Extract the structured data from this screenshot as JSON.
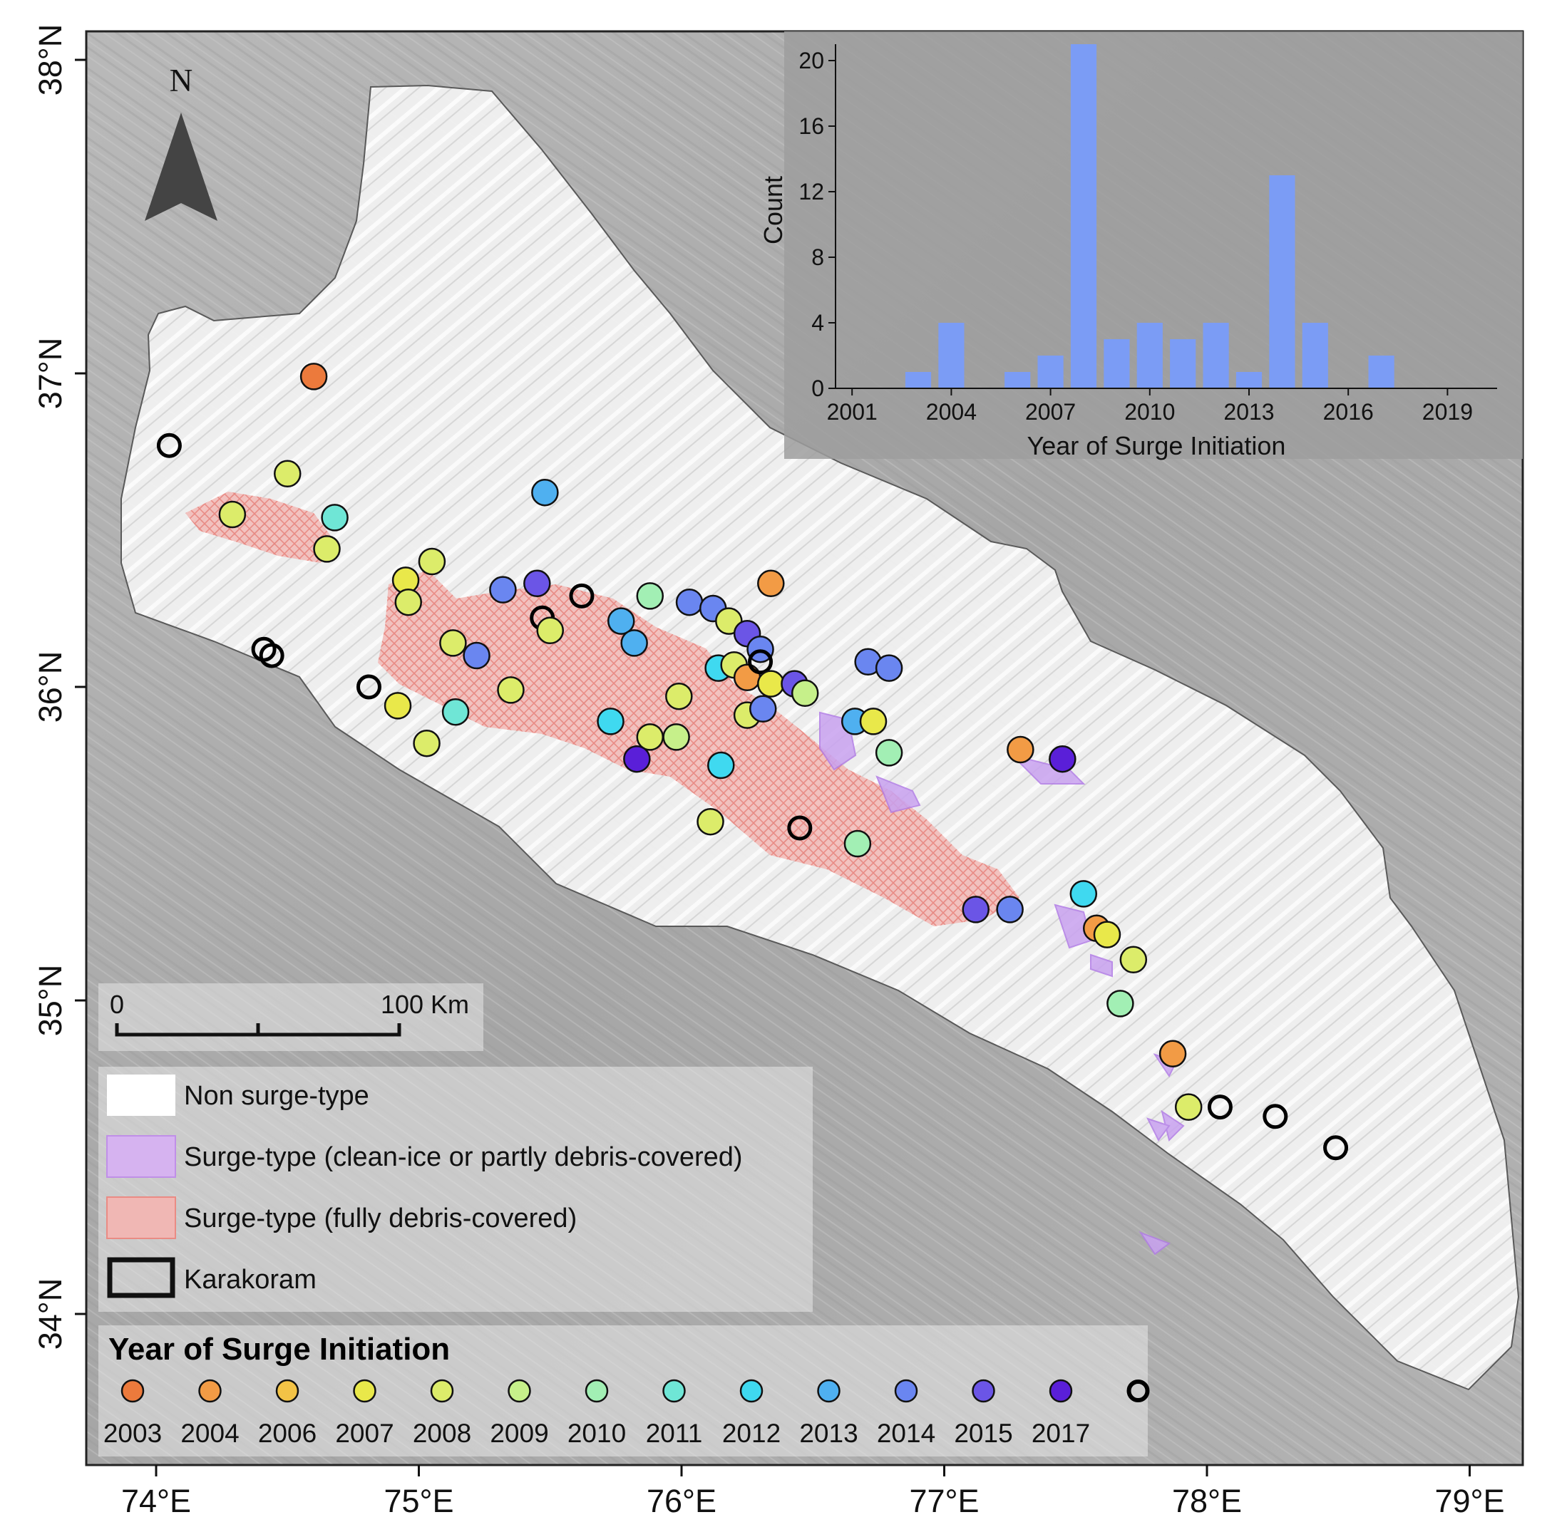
{
  "map": {
    "lon_ticks": [
      "74°E",
      "75°E",
      "76°E",
      "77°E",
      "78°E",
      "79°E"
    ],
    "lat_ticks": [
      "38°N",
      "37°N",
      "36°N",
      "35°N",
      "34°N"
    ],
    "north_label": "N",
    "scale_bar": {
      "start_label": "0",
      "end_label": "100 Km"
    },
    "legend": {
      "non_surge": "Non surge-type",
      "surge_clean": "Surge-type (clean-ice or partly debris-covered)",
      "surge_debris": "Surge-type (fully debris-covered)",
      "karakoram": "Karakoram"
    },
    "year_legend": {
      "title": "Year of Surge Initiation",
      "years": [
        {
          "label": "2003",
          "color": "#ec7a3c"
        },
        {
          "label": "2004",
          "color": "#f29b45"
        },
        {
          "label": "2006",
          "color": "#f3c346"
        },
        {
          "label": "2007",
          "color": "#e9e84a"
        },
        {
          "label": "2008",
          "color": "#dcec6a"
        },
        {
          "label": "2009",
          "color": "#c6f08a"
        },
        {
          "label": "2010",
          "color": "#a2efb4"
        },
        {
          "label": "2011",
          "color": "#6fe6d6"
        },
        {
          "label": "2012",
          "color": "#3fd9f0"
        },
        {
          "label": "2013",
          "color": "#4fb0f0"
        },
        {
          "label": "2014",
          "color": "#6a86f0"
        },
        {
          "label": "2015",
          "color": "#6b55e6"
        },
        {
          "label": "2017",
          "color": "#5a1fd8"
        }
      ]
    },
    "glacier_points": [
      {
        "lon": 74.6,
        "lat": 36.99,
        "year": "2003"
      },
      {
        "lon": 74.05,
        "lat": 36.77,
        "year": "none"
      },
      {
        "lon": 74.5,
        "lat": 36.68,
        "year": "2008"
      },
      {
        "lon": 74.29,
        "lat": 36.55,
        "year": "2008"
      },
      {
        "lon": 74.68,
        "lat": 36.54,
        "year": "2011"
      },
      {
        "lon": 74.65,
        "lat": 36.44,
        "year": "2008"
      },
      {
        "lon": 75.48,
        "lat": 36.62,
        "year": "2013"
      },
      {
        "lon": 74.95,
        "lat": 36.34,
        "year": "2007"
      },
      {
        "lon": 75.05,
        "lat": 36.4,
        "year": "2008"
      },
      {
        "lon": 74.96,
        "lat": 36.27,
        "year": "2008"
      },
      {
        "lon": 75.32,
        "lat": 36.31,
        "year": "2014"
      },
      {
        "lon": 75.45,
        "lat": 36.33,
        "year": "2015"
      },
      {
        "lon": 75.62,
        "lat": 36.29,
        "year": "none"
      },
      {
        "lon": 75.47,
        "lat": 36.22,
        "year": "none"
      },
      {
        "lon": 75.5,
        "lat": 36.18,
        "year": "2008"
      },
      {
        "lon": 74.41,
        "lat": 36.12,
        "year": "none"
      },
      {
        "lon": 74.44,
        "lat": 36.1,
        "year": "none"
      },
      {
        "lon": 75.13,
        "lat": 36.14,
        "year": "2008"
      },
      {
        "lon": 75.22,
        "lat": 36.1,
        "year": "2014"
      },
      {
        "lon": 74.81,
        "lat": 36.0,
        "year": "none"
      },
      {
        "lon": 74.92,
        "lat": 35.94,
        "year": "2007"
      },
      {
        "lon": 75.35,
        "lat": 35.99,
        "year": "2008"
      },
      {
        "lon": 75.14,
        "lat": 35.92,
        "year": "2011"
      },
      {
        "lon": 75.03,
        "lat": 35.82,
        "year": "2008"
      },
      {
        "lon": 75.88,
        "lat": 36.29,
        "year": "2010"
      },
      {
        "lon": 75.77,
        "lat": 36.21,
        "year": "2013"
      },
      {
        "lon": 75.82,
        "lat": 36.14,
        "year": "2013"
      },
      {
        "lon": 76.03,
        "lat": 36.27,
        "year": "2014"
      },
      {
        "lon": 76.12,
        "lat": 36.25,
        "year": "2014"
      },
      {
        "lon": 76.18,
        "lat": 36.21,
        "year": "2008"
      },
      {
        "lon": 76.25,
        "lat": 36.17,
        "year": "2015"
      },
      {
        "lon": 76.3,
        "lat": 36.12,
        "year": "2014"
      },
      {
        "lon": 76.34,
        "lat": 36.33,
        "year": "2004"
      },
      {
        "lon": 76.14,
        "lat": 36.06,
        "year": "2012"
      },
      {
        "lon": 76.2,
        "lat": 36.07,
        "year": "2008"
      },
      {
        "lon": 76.25,
        "lat": 36.03,
        "year": "2004"
      },
      {
        "lon": 76.3,
        "lat": 36.08,
        "year": "none"
      },
      {
        "lon": 76.34,
        "lat": 36.01,
        "year": "2007"
      },
      {
        "lon": 76.43,
        "lat": 36.01,
        "year": "2015"
      },
      {
        "lon": 76.47,
        "lat": 35.98,
        "year": "2009"
      },
      {
        "lon": 75.99,
        "lat": 35.97,
        "year": "2008"
      },
      {
        "lon": 76.25,
        "lat": 35.91,
        "year": "2008"
      },
      {
        "lon": 76.31,
        "lat": 35.93,
        "year": "2014"
      },
      {
        "lon": 75.73,
        "lat": 35.89,
        "year": "2012"
      },
      {
        "lon": 75.88,
        "lat": 35.84,
        "year": "2008"
      },
      {
        "lon": 75.98,
        "lat": 35.84,
        "year": "2009"
      },
      {
        "lon": 75.83,
        "lat": 35.77,
        "year": "2017"
      },
      {
        "lon": 76.15,
        "lat": 35.75,
        "year": "2012"
      },
      {
        "lon": 76.71,
        "lat": 36.08,
        "year": "2014"
      },
      {
        "lon": 76.79,
        "lat": 36.06,
        "year": "2014"
      },
      {
        "lon": 76.66,
        "lat": 35.89,
        "year": "2013"
      },
      {
        "lon": 76.73,
        "lat": 35.89,
        "year": "2007"
      },
      {
        "lon": 76.79,
        "lat": 35.79,
        "year": "2010"
      },
      {
        "lon": 76.11,
        "lat": 35.57,
        "year": "2008"
      },
      {
        "lon": 76.45,
        "lat": 35.55,
        "year": "none"
      },
      {
        "lon": 76.67,
        "lat": 35.5,
        "year": "2010"
      },
      {
        "lon": 77.29,
        "lat": 35.8,
        "year": "2004"
      },
      {
        "lon": 77.45,
        "lat": 35.77,
        "year": "2017"
      },
      {
        "lon": 77.12,
        "lat": 35.29,
        "year": "2015"
      },
      {
        "lon": 77.25,
        "lat": 35.29,
        "year": "2014"
      },
      {
        "lon": 77.53,
        "lat": 35.34,
        "year": "2012"
      },
      {
        "lon": 77.58,
        "lat": 35.23,
        "year": "2004"
      },
      {
        "lon": 77.62,
        "lat": 35.21,
        "year": "2007"
      },
      {
        "lon": 77.72,
        "lat": 35.13,
        "year": "2008"
      },
      {
        "lon": 77.67,
        "lat": 34.99,
        "year": "2010"
      },
      {
        "lon": 77.87,
        "lat": 34.83,
        "year": "2004"
      },
      {
        "lon": 77.93,
        "lat": 34.66,
        "year": "2008"
      },
      {
        "lon": 78.05,
        "lat": 34.66,
        "year": "none"
      },
      {
        "lon": 78.26,
        "lat": 34.63,
        "year": "none"
      },
      {
        "lon": 78.49,
        "lat": 34.53,
        "year": "none"
      }
    ]
  },
  "chart_data": {
    "type": "bar",
    "categories": [
      2003,
      2004,
      2006,
      2007,
      2008,
      2009,
      2010,
      2011,
      2012,
      2013,
      2014,
      2015,
      2017
    ],
    "values": [
      1,
      4,
      1,
      2,
      21,
      3,
      4,
      3,
      4,
      1,
      13,
      4,
      2
    ],
    "xlabel": "Year of Surge Initiation",
    "ylabel": "Count",
    "x_ticks": [
      "2001",
      "2004",
      "2007",
      "2010",
      "2013",
      "2016",
      "2019"
    ],
    "y_ticks": [
      "0",
      "4",
      "8",
      "12",
      "16",
      "20"
    ],
    "xlim": [
      2000.5,
      2020.5
    ],
    "ylim": [
      0,
      21
    ],
    "bar_color": "#7b9cf5"
  }
}
